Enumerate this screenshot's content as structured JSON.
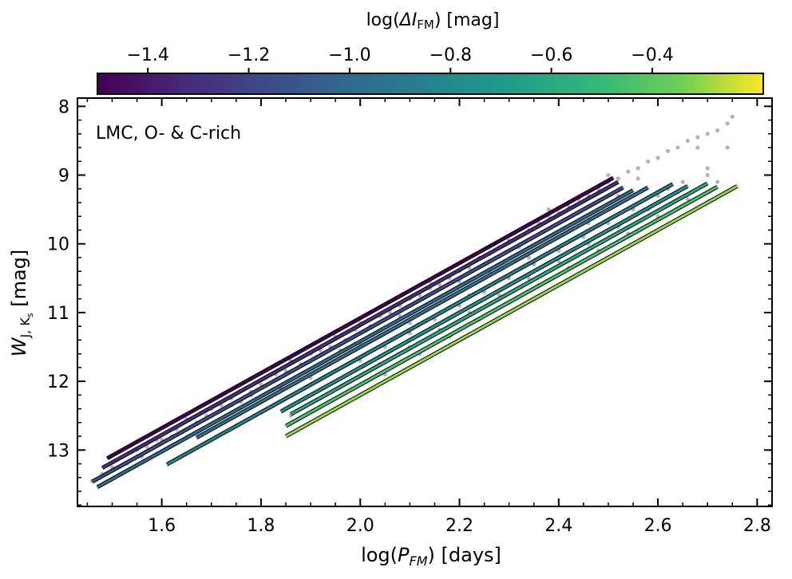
{
  "chart_data": {
    "type": "scatter",
    "annotation": "LMC, O- & C-rich",
    "xlabel": {
      "prefix": "log(",
      "var": "P",
      "sub": "FM",
      "suffix": ") [days]"
    },
    "ylabel": {
      "var": "W",
      "sub": "J, K",
      "subsub": "s",
      "suffix": " [mag]"
    },
    "xlim": [
      1.43,
      2.83
    ],
    "ylim": [
      13.82,
      7.88
    ],
    "xticks": [
      1.6,
      1.8,
      2.0,
      2.2,
      2.4,
      2.6,
      2.8
    ],
    "xtick_labels": [
      "1.6",
      "1.8",
      "2.0",
      "2.2",
      "2.4",
      "2.6",
      "2.8"
    ],
    "yticks": [
      8,
      9,
      10,
      11,
      12,
      13
    ],
    "ytick_labels": [
      "8",
      "9",
      "10",
      "11",
      "12",
      "13"
    ],
    "colorbar": {
      "label": {
        "prefix": "log(",
        "var": "ΔI",
        "sub": "FM",
        "suffix": ") [mag]"
      },
      "cmap": "viridis",
      "range": [
        -1.5,
        -0.18
      ],
      "ticks": [
        -1.4,
        -1.2,
        -1.0,
        -0.8,
        -0.6,
        -0.4
      ],
      "tick_labels": [
        "−1.4",
        "−1.2",
        "−1.0",
        "−0.8",
        "−0.6",
        "−0.4"
      ]
    },
    "scatter_color": "#b4b4b4",
    "scatter_points": [
      [
        1.46,
        13.45
      ],
      [
        1.48,
        13.35
      ],
      [
        1.5,
        13.25
      ],
      [
        1.52,
        13.1
      ],
      [
        1.53,
        13.2
      ],
      [
        1.55,
        13.0
      ],
      [
        1.57,
        12.95
      ],
      [
        1.59,
        12.85
      ],
      [
        1.62,
        12.8
      ],
      [
        1.63,
        12.7
      ],
      [
        1.65,
        12.55
      ],
      [
        1.67,
        12.6
      ],
      [
        1.69,
        12.5
      ],
      [
        1.7,
        12.4
      ],
      [
        1.72,
        12.35
      ],
      [
        1.74,
        12.25
      ],
      [
        1.76,
        12.3
      ],
      [
        1.78,
        12.15
      ],
      [
        1.8,
        12.05
      ],
      [
        1.81,
        11.95
      ],
      [
        1.83,
        11.9
      ],
      [
        1.85,
        11.85
      ],
      [
        1.86,
        11.7
      ],
      [
        1.88,
        11.75
      ],
      [
        1.9,
        11.6
      ],
      [
        1.92,
        11.55
      ],
      [
        1.94,
        11.5
      ],
      [
        1.95,
        11.35
      ],
      [
        1.97,
        11.4
      ],
      [
        1.99,
        11.25
      ],
      [
        2.0,
        11.15
      ],
      [
        2.02,
        11.2
      ],
      [
        2.04,
        11.05
      ],
      [
        2.06,
        11.0
      ],
      [
        2.08,
        10.9
      ],
      [
        2.1,
        10.8
      ],
      [
        2.12,
        10.75
      ],
      [
        2.14,
        10.65
      ],
      [
        2.16,
        10.6
      ],
      [
        2.18,
        10.5
      ],
      [
        2.2,
        10.4
      ],
      [
        2.22,
        10.35
      ],
      [
        2.24,
        10.2
      ],
      [
        2.26,
        10.15
      ],
      [
        2.28,
        10.05
      ],
      [
        2.3,
        9.95
      ],
      [
        2.32,
        9.9
      ],
      [
        2.34,
        9.8
      ],
      [
        2.36,
        9.7
      ],
      [
        2.38,
        9.6
      ],
      [
        2.4,
        9.55
      ],
      [
        2.42,
        9.45
      ],
      [
        2.44,
        9.35
      ],
      [
        2.46,
        9.3
      ],
      [
        2.48,
        9.2
      ],
      [
        2.5,
        9.1
      ],
      [
        2.52,
        9.05
      ],
      [
        2.54,
        8.95
      ],
      [
        2.56,
        8.9
      ],
      [
        2.58,
        8.8
      ],
      [
        2.6,
        8.75
      ],
      [
        2.62,
        8.65
      ],
      [
        2.64,
        8.6
      ],
      [
        2.66,
        8.5
      ],
      [
        2.68,
        8.45
      ],
      [
        2.7,
        8.4
      ],
      [
        2.72,
        8.35
      ],
      [
        2.74,
        8.25
      ],
      [
        2.75,
        8.15
      ],
      [
        1.9,
        11.95
      ],
      [
        1.95,
        11.85
      ],
      [
        2.0,
        11.7
      ],
      [
        2.05,
        11.5
      ],
      [
        2.1,
        11.3
      ],
      [
        2.15,
        11.1
      ],
      [
        2.2,
        10.9
      ],
      [
        2.25,
        10.7
      ],
      [
        2.3,
        10.5
      ],
      [
        2.35,
        10.3
      ],
      [
        2.4,
        10.1
      ],
      [
        2.45,
        9.9
      ],
      [
        2.5,
        9.7
      ],
      [
        2.55,
        9.5
      ],
      [
        2.6,
        9.3
      ],
      [
        2.65,
        9.1
      ],
      [
        2.7,
        8.9
      ],
      [
        2.05,
        11.9
      ],
      [
        2.12,
        11.6
      ],
      [
        2.18,
        11.35
      ],
      [
        2.24,
        11.1
      ],
      [
        2.3,
        10.85
      ],
      [
        2.36,
        10.6
      ],
      [
        2.42,
        10.35
      ],
      [
        2.48,
        10.1
      ],
      [
        2.54,
        9.85
      ],
      [
        2.6,
        9.6
      ],
      [
        2.66,
        9.35
      ],
      [
        2.72,
        9.1
      ],
      [
        1.86,
        12.5
      ],
      [
        1.92,
        12.25
      ],
      [
        1.98,
        12.0
      ],
      [
        2.04,
        11.75
      ],
      [
        2.1,
        11.5
      ],
      [
        2.16,
        11.25
      ],
      [
        2.22,
        11.0
      ],
      [
        2.28,
        10.75
      ],
      [
        2.34,
        10.5
      ],
      [
        2.4,
        10.25
      ],
      [
        2.46,
        10.0
      ],
      [
        2.52,
        9.75
      ],
      [
        2.58,
        9.5
      ],
      [
        2.64,
        9.25
      ],
      [
        2.7,
        9.0
      ],
      [
        1.84,
        12.1
      ],
      [
        1.96,
        11.55
      ],
      [
        2.08,
        11.05
      ],
      [
        2.2,
        10.55
      ],
      [
        2.32,
        10.05
      ],
      [
        2.44,
        9.55
      ],
      [
        2.56,
        9.05
      ],
      [
        2.68,
        8.6
      ],
      [
        2.06,
        10.95
      ],
      [
        2.14,
        10.55
      ],
      [
        2.26,
        10.05
      ],
      [
        2.38,
        9.5
      ],
      [
        2.5,
        9.0
      ],
      [
        2.62,
        9.2
      ],
      [
        2.74,
        8.6
      ],
      [
        1.78,
        12.2
      ],
      [
        1.74,
        12.35
      ],
      [
        1.68,
        12.45
      ],
      [
        1.6,
        12.85
      ],
      [
        1.56,
        13.1
      ],
      [
        2.0,
        11.45
      ],
      [
        2.26,
        10.4
      ],
      [
        2.52,
        9.3
      ],
      [
        2.46,
        9.7
      ],
      [
        2.34,
        10.2
      ],
      [
        2.22,
        10.75
      ],
      [
        2.1,
        11.15
      ]
    ],
    "lines": [
      {
        "c": -1.5,
        "x0": 1.49,
        "x1": 2.51,
        "y_at_2": 11.08
      },
      {
        "c": -1.3,
        "x0": 1.48,
        "x1": 2.52,
        "y_at_2": 11.18
      },
      {
        "c": -1.15,
        "x0": 1.46,
        "x1": 2.53,
        "y_at_2": 11.3
      },
      {
        "c": -1.0,
        "x0": 1.47,
        "x1": 2.55,
        "y_at_2": 11.42
      },
      {
        "c": -0.95,
        "x0": 1.67,
        "x1": 2.58,
        "y_at_2": 11.5
      },
      {
        "c": -0.85,
        "x0": 1.61,
        "x1": 2.63,
        "y_at_2": 11.65
      },
      {
        "c": -0.75,
        "x0": 1.84,
        "x1": 2.66,
        "y_at_2": 11.8
      },
      {
        "c": -0.6,
        "x0": 1.86,
        "x1": 2.7,
        "y_at_2": 11.92
      },
      {
        "c": -0.45,
        "x0": 1.85,
        "x1": 2.72,
        "y_at_2": 12.05
      },
      {
        "c": -0.3,
        "x0": 1.85,
        "x1": 2.76,
        "y_at_2": 12.2
      }
    ],
    "line_slope": -4.0
  }
}
